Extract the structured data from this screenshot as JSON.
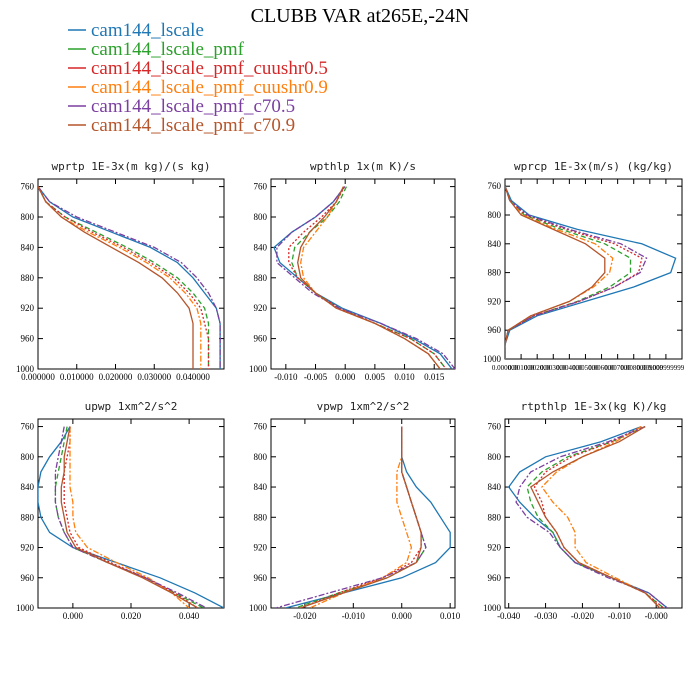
{
  "figure": {
    "title": "CLUBB VAR at265E,-24N"
  },
  "legend": [
    {
      "name": "cam144_lscale",
      "color": "#1f77b4",
      "dash": "solid"
    },
    {
      "name": "cam144_lscale_pmf",
      "color": "#2ca02c",
      "dash": "dash"
    },
    {
      "name": "cam144_lscale_pmf_cuushr0.5",
      "color": "#d62728",
      "dash": "dot"
    },
    {
      "name": "cam144_lscale_pmf_cuushr0.9",
      "color": "#ff7f0e",
      "dash": "dashdot"
    },
    {
      "name": "cam144_lscale_pmf_c70.5",
      "color": "#7b3fa0",
      "dash": "dashdot"
    },
    {
      "name": "cam144_lscale_pmf_c70.9",
      "color": "#b5552b",
      "dash": "solid"
    }
  ],
  "chart_data": [
    {
      "type": "line",
      "title": "wprtp  1E-3x(m kg)/(s kg)",
      "xlim": [
        0.0,
        0.048
      ],
      "ylim": [
        1000,
        750
      ],
      "xticks": [
        0.0,
        0.01,
        0.02,
        0.03,
        0.04
      ],
      "xticklabels": [
        "0.000000",
        "0.010000",
        "0.020000",
        "0.030000",
        "0.040000"
      ],
      "yticks": [
        760,
        800,
        840,
        880,
        920,
        960,
        1000
      ],
      "y": [
        760,
        780,
        800,
        820,
        840,
        860,
        880,
        900,
        920,
        940,
        960,
        980,
        1000
      ],
      "series": [
        {
          "name": "cam144_lscale",
          "values": [
            0.0,
            0.003,
            0.009,
            0.019,
            0.029,
            0.036,
            0.04,
            0.043,
            0.046,
            0.047,
            0.047,
            0.047,
            0.047
          ]
        },
        {
          "name": "cam144_lscale_pmf",
          "values": [
            0.0,
            0.002,
            0.007,
            0.015,
            0.023,
            0.03,
            0.036,
            0.04,
            0.043,
            0.044,
            0.044,
            0.044,
            0.044
          ]
        },
        {
          "name": "cam144_lscale_pmf_cuushr0.5",
          "values": [
            0.0,
            0.002,
            0.007,
            0.014,
            0.022,
            0.029,
            0.035,
            0.039,
            0.042,
            0.043,
            0.044,
            0.044,
            0.044
          ]
        },
        {
          "name": "cam144_lscale_pmf_cuushr0.9",
          "values": [
            0.0,
            0.002,
            0.006,
            0.013,
            0.021,
            0.028,
            0.034,
            0.038,
            0.041,
            0.042,
            0.042,
            0.042,
            0.042
          ]
        },
        {
          "name": "cam144_lscale_pmf_c70.5",
          "values": [
            0.0,
            0.003,
            0.01,
            0.02,
            0.03,
            0.037,
            0.041,
            0.044,
            0.046,
            0.047,
            0.047,
            0.047,
            0.047
          ]
        },
        {
          "name": "cam144_lscale_pmf_c70.9",
          "values": [
            0.0,
            0.002,
            0.006,
            0.012,
            0.019,
            0.026,
            0.032,
            0.036,
            0.039,
            0.04,
            0.04,
            0.04,
            0.04
          ]
        }
      ]
    },
    {
      "type": "line",
      "title": "wpthlp  1x(m K)/s",
      "xlim": [
        -0.0125,
        0.0185
      ],
      "ylim": [
        1000,
        750
      ],
      "xticks": [
        -0.01,
        -0.005,
        0.0,
        0.005,
        0.01,
        0.015
      ],
      "xticklabels": [
        "-0.010",
        "-0.005",
        "0.000",
        "0.005",
        "0.010",
        "0.015"
      ],
      "yticks": [
        760,
        800,
        840,
        880,
        920,
        960,
        1000
      ],
      "y": [
        760,
        780,
        800,
        820,
        840,
        860,
        880,
        900,
        920,
        940,
        960,
        980,
        1000
      ],
      "series": [
        {
          "name": "cam144_lscale",
          "values": [
            -0.0001,
            -0.002,
            -0.005,
            -0.009,
            -0.012,
            -0.011,
            -0.008,
            -0.005,
            -0.0005,
            0.006,
            0.0115,
            0.016,
            0.018
          ]
        },
        {
          "name": "cam144_lscale_pmf",
          "values": [
            0.0002,
            -0.001,
            -0.003,
            -0.006,
            -0.0085,
            -0.009,
            -0.008,
            -0.005,
            -0.001,
            0.005,
            0.011,
            0.015,
            0.017
          ]
        },
        {
          "name": "cam144_lscale_pmf_cuushr0.5",
          "values": [
            -0.0001,
            -0.0015,
            -0.004,
            -0.007,
            -0.0095,
            -0.0095,
            -0.008,
            -0.005,
            -0.001,
            0.005,
            0.011,
            0.015,
            0.017
          ]
        },
        {
          "name": "cam144_lscale_pmf_cuushr0.9",
          "values": [
            -0.0003,
            -0.0015,
            -0.003,
            -0.005,
            -0.007,
            -0.0075,
            -0.007,
            -0.005,
            -0.0015,
            0.005,
            0.01,
            0.014,
            0.016
          ]
        },
        {
          "name": "cam144_lscale_pmf_c70.5",
          "values": [
            -0.0001,
            -0.002,
            -0.005,
            -0.009,
            -0.0115,
            -0.0115,
            -0.0085,
            -0.0055,
            -0.001,
            0.006,
            0.012,
            0.0165,
            0.0185
          ]
        },
        {
          "name": "cam144_lscale_pmf_c70.9",
          "values": [
            -0.0003,
            -0.0015,
            -0.0035,
            -0.006,
            -0.0075,
            -0.008,
            -0.0075,
            -0.005,
            -0.0015,
            0.005,
            0.01,
            0.014,
            0.016
          ]
        }
      ]
    },
    {
      "type": "line",
      "title": "wprcp  1E-3x(m/s) (kg/kg)",
      "xlim": [
        0.0,
        0.0109999999
      ],
      "ylim": [
        1000,
        750
      ],
      "xticks": [
        0.0,
        0.001,
        0.002,
        0.003,
        0.004,
        0.005,
        0.006,
        0.007,
        0.008,
        0.009,
        0.0099999999
      ],
      "xticklabels": [
        "0.000000",
        "0.001000",
        "0.002000",
        "0.003000",
        "0.004000",
        "0.005000",
        "0.006000",
        "0.007000",
        "0.008000",
        "0.009000",
        "0.009999999"
      ],
      "yticks": [
        760,
        800,
        840,
        880,
        920,
        960,
        1000
      ],
      "y": [
        760,
        780,
        800,
        820,
        840,
        860,
        880,
        900,
        920,
        940,
        960,
        980,
        1000
      ],
      "series": [
        {
          "name": "cam144_lscale",
          "values": [
            0.0,
            0.0004,
            0.0015,
            0.0045,
            0.0085,
            0.0106,
            0.0103,
            0.008,
            0.005,
            0.002,
            0.0003,
            0.0,
            0.0
          ]
        },
        {
          "name": "cam144_lscale_pmf",
          "values": [
            0.0,
            0.0003,
            0.0012,
            0.0035,
            0.0062,
            0.0078,
            0.0078,
            0.0065,
            0.0045,
            0.0018,
            0.0002,
            0.0,
            0.0
          ]
        },
        {
          "name": "cam144_lscale_pmf_cuushr0.5",
          "values": [
            0.0,
            0.0003,
            0.0013,
            0.0038,
            0.0068,
            0.0085,
            0.0083,
            0.0068,
            0.0046,
            0.0018,
            0.0002,
            0.0,
            0.0
          ]
        },
        {
          "name": "cam144_lscale_pmf_cuushr0.9",
          "values": [
            0.0,
            0.0003,
            0.0011,
            0.0032,
            0.0056,
            0.0067,
            0.0065,
            0.0055,
            0.004,
            0.0016,
            0.0002,
            0.0,
            0.0
          ]
        },
        {
          "name": "cam144_lscale_pmf_c70.5",
          "values": [
            0.0,
            0.0003,
            0.0014,
            0.004,
            0.0072,
            0.0088,
            0.0084,
            0.0068,
            0.0046,
            0.0018,
            0.0002,
            0.0,
            0.0
          ]
        },
        {
          "name": "cam144_lscale_pmf_c70.9",
          "values": [
            0.0,
            0.0003,
            0.001,
            0.003,
            0.005,
            0.0062,
            0.0062,
            0.0054,
            0.004,
            0.0016,
            0.0002,
            0.0,
            0.0
          ]
        }
      ]
    },
    {
      "type": "line",
      "title": "upwp  1xm^2/s^2",
      "xlim": [
        -0.012,
        0.052
      ],
      "ylim": [
        1000,
        750
      ],
      "xticks": [
        0.0,
        0.02,
        0.04
      ],
      "xticklabels": [
        "0.000",
        "0.020",
        "0.040"
      ],
      "yticks": [
        760,
        800,
        840,
        880,
        920,
        960,
        1000
      ],
      "y": [
        760,
        780,
        800,
        820,
        840,
        860,
        880,
        900,
        920,
        940,
        960,
        980,
        1000
      ],
      "series": [
        {
          "name": "cam144_lscale",
          "values": [
            -0.001,
            -0.004,
            -0.008,
            -0.011,
            -0.012,
            -0.012,
            -0.011,
            -0.008,
            0.0,
            0.015,
            0.03,
            0.042,
            0.052
          ]
        },
        {
          "name": "cam144_lscale_pmf",
          "values": [
            -0.002,
            -0.003,
            -0.004,
            -0.005,
            -0.006,
            -0.006,
            -0.005,
            -0.003,
            0.0,
            0.012,
            0.025,
            0.035,
            0.045
          ]
        },
        {
          "name": "cam144_lscale_pmf_cuushr0.5",
          "values": [
            -0.001,
            -0.001,
            -0.002,
            -0.003,
            -0.003,
            -0.003,
            -0.002,
            -0.001,
            0.002,
            0.013,
            0.025,
            0.035,
            0.043
          ]
        },
        {
          "name": "cam144_lscale_pmf_cuushr0.9",
          "values": [
            -0.001,
            -0.001,
            -0.001,
            -0.001,
            -0.001,
            0.0,
            0.0,
            0.001,
            0.005,
            0.015,
            0.026,
            0.034,
            0.04
          ]
        },
        {
          "name": "cam144_lscale_pmf_c70.5",
          "values": [
            -0.003,
            -0.004,
            -0.005,
            -0.006,
            -0.006,
            -0.006,
            -0.005,
            -0.003,
            0.0,
            0.012,
            0.025,
            0.036,
            0.046
          ]
        },
        {
          "name": "cam144_lscale_pmf_c70.9",
          "values": [
            -0.001,
            -0.002,
            -0.003,
            -0.003,
            -0.004,
            -0.004,
            -0.003,
            -0.002,
            0.001,
            0.012,
            0.024,
            0.034,
            0.043
          ]
        }
      ]
    },
    {
      "type": "line",
      "title": "vpwp  1xm^2/s^2",
      "xlim": [
        -0.027,
        0.011
      ],
      "ylim": [
        1000,
        750
      ],
      "xticks": [
        -0.02,
        -0.01,
        0.0,
        0.01
      ],
      "xticklabels": [
        "-0.020",
        "-0.010",
        "0.000",
        "0.010"
      ],
      "yticks": [
        760,
        800,
        840,
        880,
        920,
        960,
        1000
      ],
      "y": [
        760,
        780,
        800,
        820,
        840,
        860,
        880,
        900,
        920,
        940,
        960,
        980,
        1000
      ],
      "series": [
        {
          "name": "cam144_lscale",
          "values": [
            0.0,
            0.0,
            0.0,
            0.001,
            0.003,
            0.006,
            0.008,
            0.01,
            0.01,
            0.007,
            0.0,
            -0.012,
            -0.024
          ]
        },
        {
          "name": "cam144_lscale_pmf",
          "values": [
            0.0,
            0.0,
            0.0,
            0.0,
            0.001,
            0.002,
            0.003,
            0.004,
            0.005,
            0.003,
            -0.003,
            -0.013,
            -0.022
          ]
        },
        {
          "name": "cam144_lscale_pmf_cuushr0.5",
          "values": [
            0.0,
            0.0,
            0.0,
            0.0,
            0.001,
            0.002,
            0.003,
            0.004,
            0.004,
            0.002,
            -0.004,
            -0.013,
            -0.021
          ]
        },
        {
          "name": "cam144_lscale_pmf_cuushr0.9",
          "values": [
            0.0,
            0.0,
            0.0,
            -0.001,
            -0.001,
            -0.001,
            0.0,
            0.001,
            0.002,
            0.001,
            -0.004,
            -0.012,
            -0.019
          ]
        },
        {
          "name": "cam144_lscale_pmf_c70.5",
          "values": [
            0.0,
            0.0,
            0.0,
            0.0,
            0.001,
            0.002,
            0.003,
            0.004,
            0.005,
            0.003,
            -0.004,
            -0.015,
            -0.026
          ]
        },
        {
          "name": "cam144_lscale_pmf_c70.9",
          "values": [
            0.0,
            0.0,
            0.0,
            0.0,
            0.001,
            0.002,
            0.003,
            0.004,
            0.004,
            0.003,
            -0.003,
            -0.012,
            -0.021
          ]
        }
      ]
    },
    {
      "type": "line",
      "title": "rtpthlp  1E-3x(kg K)/kg",
      "xlim": [
        -0.041,
        0.007
      ],
      "ylim": [
        1000,
        750
      ],
      "xticks": [
        -0.04,
        -0.03,
        -0.02,
        -0.01,
        0.0
      ],
      "xticklabels": [
        "-0.040",
        "-0.030",
        "-0.020",
        "-0.010",
        "-0.000"
      ],
      "yticks": [
        760,
        800,
        840,
        880,
        920,
        960,
        1000
      ],
      "y": [
        760,
        780,
        800,
        820,
        840,
        860,
        880,
        900,
        920,
        940,
        960,
        980,
        1000
      ],
      "series": [
        {
          "name": "cam144_lscale",
          "values": [
            -0.004,
            -0.015,
            -0.03,
            -0.037,
            -0.04,
            -0.037,
            -0.033,
            -0.028,
            -0.026,
            -0.022,
            -0.012,
            -0.002,
            0.003
          ]
        },
        {
          "name": "cam144_lscale_pmf",
          "values": [
            -0.003,
            -0.012,
            -0.024,
            -0.031,
            -0.035,
            -0.034,
            -0.032,
            -0.028,
            -0.026,
            -0.022,
            -0.012,
            -0.003,
            0.002
          ]
        },
        {
          "name": "cam144_lscale_pmf_cuushr0.5",
          "values": [
            -0.004,
            -0.012,
            -0.023,
            -0.03,
            -0.033,
            -0.031,
            -0.03,
            -0.027,
            -0.025,
            -0.021,
            -0.012,
            -0.003,
            0.002
          ]
        },
        {
          "name": "cam144_lscale_pmf_cuushr0.9",
          "values": [
            -0.004,
            -0.011,
            -0.02,
            -0.027,
            -0.031,
            -0.028,
            -0.024,
            -0.022,
            -0.022,
            -0.019,
            -0.011,
            -0.003,
            0.001
          ]
        },
        {
          "name": "cam144_lscale_pmf_c70.5",
          "values": [
            -0.003,
            -0.013,
            -0.026,
            -0.034,
            -0.037,
            -0.038,
            -0.035,
            -0.029,
            -0.026,
            -0.022,
            -0.013,
            -0.002,
            0.003
          ]
        },
        {
          "name": "cam144_lscale_pmf_c70.9",
          "values": [
            -0.003,
            -0.01,
            -0.02,
            -0.028,
            -0.034,
            -0.032,
            -0.03,
            -0.027,
            -0.025,
            -0.021,
            -0.012,
            -0.003,
            0.001
          ]
        }
      ]
    }
  ]
}
